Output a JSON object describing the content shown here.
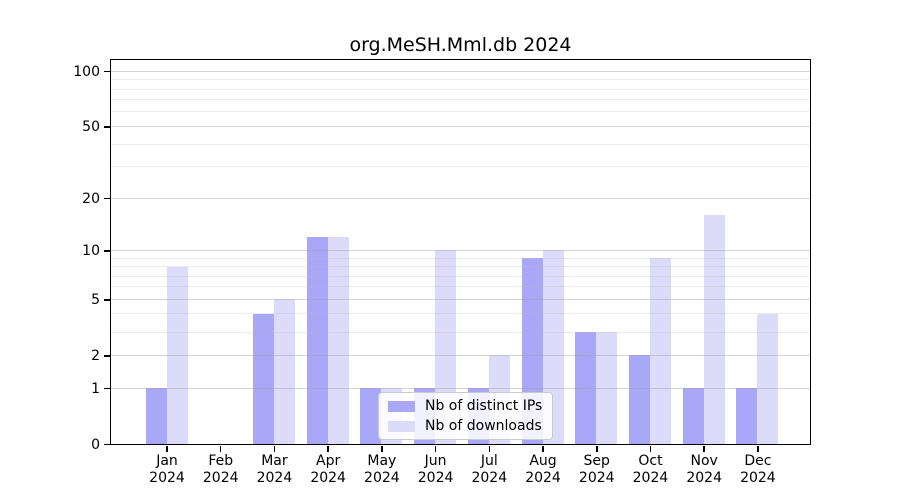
{
  "chart_data": {
    "type": "bar",
    "title": "org.MeSH.Mml.db 2024",
    "year": "2024",
    "categories": [
      "Jan",
      "Feb",
      "Mar",
      "Apr",
      "May",
      "Jun",
      "Jul",
      "Aug",
      "Sep",
      "Oct",
      "Nov",
      "Dec"
    ],
    "series": [
      {
        "name": "Nb of distinct IPs",
        "color": "#a8a7f8",
        "values": [
          1,
          0,
          4,
          12,
          1,
          1,
          1,
          9,
          3,
          2,
          1,
          1
        ]
      },
      {
        "name": "Nb of downloads",
        "color": "#dcdbfa",
        "values": [
          8,
          0,
          5,
          12,
          1,
          10,
          2,
          10,
          3,
          9,
          16,
          4
        ]
      }
    ],
    "xlabel": "",
    "ylabel": "",
    "y_scale": "log1p",
    "ylim": [
      0,
      116
    ],
    "y_ticks": [
      0,
      1,
      2,
      5,
      10,
      20,
      50,
      100
    ],
    "y_minor_gridlines": [
      3,
      4,
      6,
      7,
      8,
      9,
      30,
      40,
      60,
      70,
      80,
      90
    ],
    "grid": "on",
    "legend_position": "lower center"
  }
}
